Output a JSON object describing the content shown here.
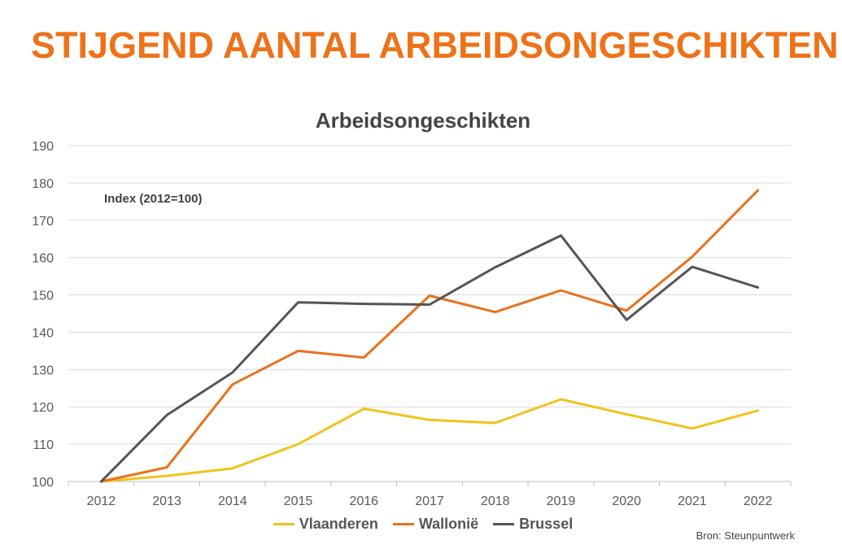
{
  "header": {
    "title": "STIJGEND AANTAL ARBEIDSONGESCHIKTEN"
  },
  "chart_data": {
    "type": "line",
    "title": "Arbeidsongeschikten",
    "annotation": "Index (2012=100)",
    "categories": [
      "2012",
      "2013",
      "2014",
      "2015",
      "2016",
      "2017",
      "2018",
      "2019",
      "2020",
      "2021",
      "2022"
    ],
    "ylim": [
      100,
      190
    ],
    "yticks": [
      100,
      110,
      120,
      130,
      140,
      150,
      160,
      170,
      180,
      190
    ],
    "grid": true,
    "legend_position": "bottom",
    "series": [
      {
        "name": "Vlaanderen",
        "color": "#f2c21b",
        "values": [
          100,
          101.5,
          103.5,
          110,
          119.5,
          116.5,
          115.7,
          122,
          118,
          114.2,
          119
        ]
      },
      {
        "name": "Wallonië",
        "color": "#e9711c",
        "values": [
          100,
          103.8,
          126,
          135,
          133.2,
          149.8,
          145.4,
          151.2,
          145.8,
          160.2,
          178
        ]
      },
      {
        "name": "Brussel",
        "color": "#555555",
        "values": [
          100,
          117.8,
          129.2,
          148,
          147.6,
          147.4,
          157.4,
          165.9,
          143.3,
          157.5,
          152
        ]
      }
    ]
  },
  "footer": {
    "source": "Bron: Steunpuntwerk"
  }
}
